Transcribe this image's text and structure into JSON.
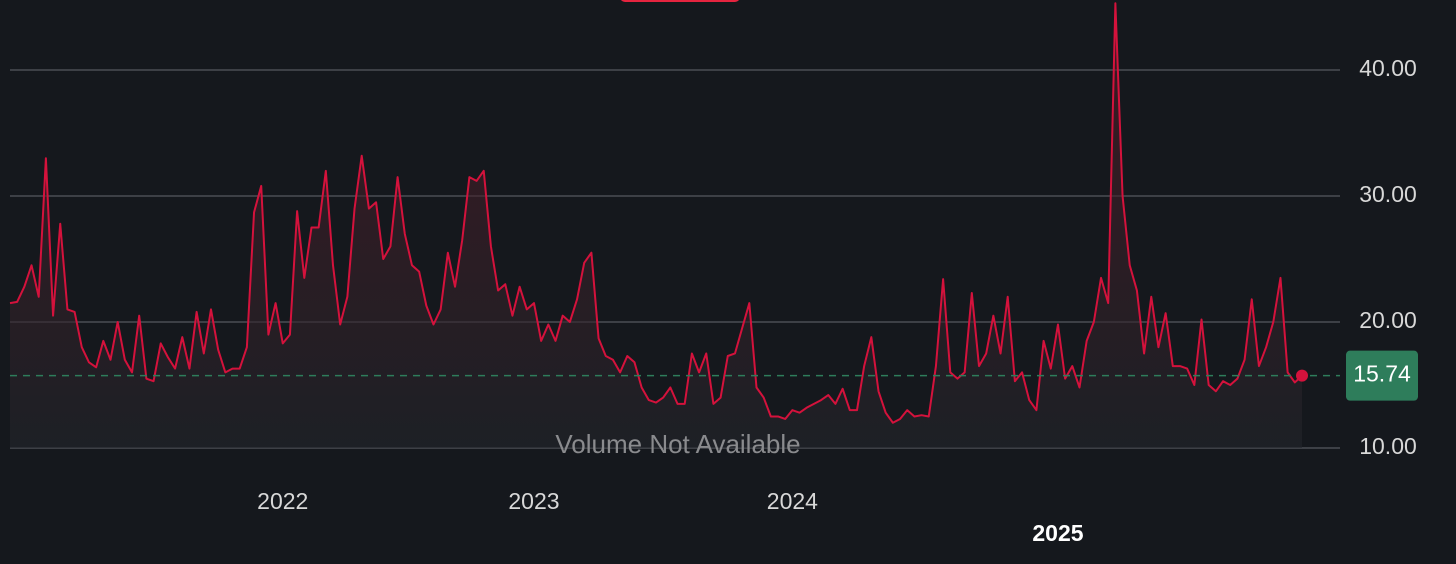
{
  "chart_data": {
    "type": "line",
    "annotation": "Volume Not Available",
    "color": "#d4123c",
    "last_value_color": "#2e7d5b",
    "categories": [
      null,
      null,
      null,
      null,
      null,
      null,
      null,
      null,
      null,
      null,
      null,
      null,
      null,
      null,
      null,
      null,
      null,
      null,
      null,
      null,
      null,
      null,
      null,
      null,
      null,
      null,
      null,
      null,
      null,
      null,
      null,
      null,
      null,
      null,
      null,
      null,
      null,
      null,
      "2022",
      null,
      null,
      null,
      null,
      null,
      null,
      null,
      null,
      null,
      null,
      null,
      null,
      null,
      null,
      null,
      null,
      null,
      null,
      null,
      null,
      null,
      null,
      null,
      null,
      null,
      null,
      null,
      null,
      null,
      null,
      null,
      null,
      null,
      null,
      "2023",
      null,
      null,
      null,
      null,
      null,
      null,
      null,
      null,
      null,
      null,
      null,
      null,
      null,
      null,
      null,
      null,
      null,
      null,
      null,
      null,
      null,
      null,
      null,
      null,
      null,
      null,
      null,
      null,
      null,
      null,
      null,
      null,
      null,
      null,
      null,
      "2024",
      null,
      null,
      null,
      null,
      null,
      null,
      null,
      null,
      null,
      null,
      null,
      null,
      null,
      null,
      null,
      null,
      null,
      null,
      null,
      null,
      null,
      null,
      null,
      null,
      null,
      null,
      null,
      null,
      null,
      null,
      null,
      null,
      null,
      null,
      null,
      null,
      "2025",
      null,
      null,
      null,
      null,
      null,
      null,
      null,
      null,
      null,
      null,
      null,
      null,
      null,
      null,
      null,
      null,
      null,
      null,
      null,
      null,
      null,
      null,
      null,
      null,
      null,
      null,
      null,
      null,
      null,
      null,
      null,
      null,
      null,
      null
    ],
    "values": [
      21.5,
      21.6,
      22.8,
      24.5,
      22,
      33,
      20.5,
      27.8,
      21,
      20.8,
      18,
      16.8,
      16.4,
      18.5,
      17,
      20,
      17,
      16,
      20.5,
      15.5,
      15.3,
      18.3,
      17.2,
      16.3,
      18.8,
      16.3,
      20.8,
      17.5,
      21,
      17.8,
      16,
      16.3,
      16.3,
      18,
      28.7,
      30.8,
      19,
      21.5,
      18.3,
      19,
      28.8,
      23.5,
      27.5,
      27.5,
      32,
      24.5,
      19.8,
      22,
      29,
      33.2,
      29,
      29.5,
      25,
      26,
      31.5,
      27,
      24.5,
      24,
      21.3,
      19.8,
      21,
      25.5,
      22.8,
      26.5,
      31.5,
      31.2,
      32,
      26,
      22.5,
      23,
      20.5,
      22.8,
      21,
      21.5,
      18.5,
      19.8,
      18.5,
      20.5,
      20,
      21.8,
      24.7,
      25.5,
      18.7,
      17.3,
      17,
      16,
      17.3,
      16.8,
      14.8,
      13.8,
      13.6,
      14,
      14.8,
      13.5,
      13.5,
      17.5,
      16,
      17.5,
      13.5,
      14,
      17.3,
      17.5,
      19.5,
      21.5,
      14.8,
      14,
      12.5,
      12.5,
      12.3,
      13,
      12.8,
      13.2,
      13.5,
      13.8,
      14.2,
      13.5,
      14.7,
      13,
      13,
      16.5,
      18.8,
      14.5,
      12.8,
      12,
      12.3,
      13,
      12.5,
      12.6,
      12.5,
      16.5,
      23.4,
      16,
      15.5,
      16,
      22.3,
      16.5,
      17.5,
      20.5,
      17.5,
      22,
      15.3,
      16,
      13.8,
      13,
      18.5,
      16.3,
      19.8,
      15.5,
      16.5,
      14.8,
      18.5,
      20,
      23.5,
      21.5,
      45.3,
      30,
      24.5,
      22.5,
      17.5,
      22,
      18,
      20.7,
      16.5,
      16.5,
      16.3,
      15,
      20.2,
      15,
      14.5,
      15.3,
      15,
      15.5,
      17,
      21.8,
      16.5,
      18,
      20,
      23.5,
      16,
      15.2,
      15.74
    ],
    "ylim": [
      8.25,
      45.56
    ],
    "yticks": [
      {
        "value": 10,
        "label": "10.00"
      },
      {
        "value": 20,
        "label": "20.00"
      },
      {
        "value": 30,
        "label": "30.00"
      },
      {
        "value": 40,
        "label": "40.00"
      }
    ],
    "grid": true
  }
}
